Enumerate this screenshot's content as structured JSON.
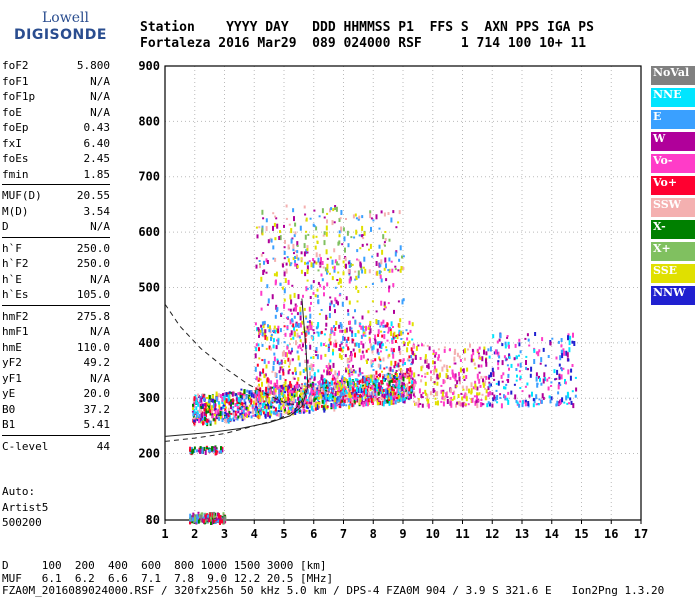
{
  "logo": {
    "line1": "Lowell",
    "line2": "DIGISONDE"
  },
  "header": {
    "labels_line": "Station    YYYY DAY   DDD HHMMSS P1  FFS S  AXN PPS IGA PS",
    "values_line": "Fortaleza 2016 Mar29  089 024000 RSF     1 714 100 10+ 11"
  },
  "params": [
    {
      "name": "foF2",
      "value": "5.800"
    },
    {
      "name": "foF1",
      "value": "N/A"
    },
    {
      "name": "foF1p",
      "value": "N/A"
    },
    {
      "name": "foE",
      "value": "N/A"
    },
    {
      "name": "foEp",
      "value": "0.43"
    },
    {
      "name": "fxI",
      "value": "6.40"
    },
    {
      "name": "foEs",
      "value": "2.45"
    },
    {
      "name": "fmin",
      "value": "1.85"
    },
    {
      "name": "MUF(D)",
      "value": "20.55"
    },
    {
      "name": "M(D)",
      "value": "3.54"
    },
    {
      "name": "D",
      "value": "N/A"
    },
    {
      "name": "h`F",
      "value": "250.0"
    },
    {
      "name": "h`F2",
      "value": "250.0"
    },
    {
      "name": "h`E",
      "value": "N/A"
    },
    {
      "name": "h`Es",
      "value": "105.0"
    },
    {
      "name": "hmF2",
      "value": "275.8"
    },
    {
      "name": "hmF1",
      "value": "N/A"
    },
    {
      "name": "hmE",
      "value": "110.0"
    },
    {
      "name": "yF2",
      "value": "49.2"
    },
    {
      "name": "yF1",
      "value": "N/A"
    },
    {
      "name": "yE",
      "value": "20.0"
    },
    {
      "name": "B0",
      "value": "37.2"
    },
    {
      "name": "B1",
      "value": "5.41"
    },
    {
      "name": "C-level",
      "value": "44"
    }
  ],
  "auto": {
    "line1": "Auto:",
    "line2": "Artist5",
    "line3": "500200"
  },
  "legend": [
    {
      "label": "NoVal",
      "color": "#808080"
    },
    {
      "label": "NNE",
      "color": "#00e5ff"
    },
    {
      "label": "E",
      "color": "#3aa0ff"
    },
    {
      "label": "W",
      "color": "#b0009a"
    },
    {
      "label": "Vo-",
      "color": "#ff3cc8"
    },
    {
      "label": "Vo+",
      "color": "#ff0030"
    },
    {
      "label": "SSW",
      "color": "#f4b0b0"
    },
    {
      "label": "X-",
      "color": "#008000"
    },
    {
      "label": "X+",
      "color": "#80c060"
    },
    {
      "label": "SSE",
      "color": "#e0e000"
    },
    {
      "label": "NNW",
      "color": "#2020d0"
    }
  ],
  "chart_data": {
    "type": "scatter",
    "xlim": [
      1,
      17
    ],
    "ylim": [
      80,
      900
    ],
    "xticks": [
      "1",
      "2",
      "3",
      "4",
      "5",
      "6",
      "7",
      "8",
      "9",
      "10",
      "11",
      "12",
      "13",
      "14",
      "15",
      "16",
      "17"
    ],
    "yticks": [
      "80",
      "200",
      "300",
      "400",
      "500",
      "600",
      "700",
      "800",
      "900"
    ],
    "grid": true,
    "legend_position": "right",
    "clusters": [
      {
        "name": "Es",
        "freq": [
          1.8,
          3.0
        ],
        "height": [
          80,
          95
        ],
        "density": 180,
        "colors": [
          "#3aa0ff",
          "#b0009a",
          "#ff0030",
          "#008000",
          "#80c060",
          "#808080"
        ]
      },
      {
        "name": "Es2",
        "freq": [
          1.8,
          2.9
        ],
        "height": [
          205,
          215
        ],
        "density": 60,
        "colors": [
          "#3aa0ff",
          "#b0009a",
          "#008000",
          "#ff0030"
        ]
      },
      {
        "name": "F-trace",
        "freq": [
          1.9,
          9.3
        ],
        "height": [
          255,
          330
        ],
        "density": 1400,
        "colors": [
          "#ff0030",
          "#e0e000",
          "#3aa0ff",
          "#b0009a",
          "#ff3cc8",
          "#00e5ff",
          "#f4b0b0",
          "#008000",
          "#2020d0"
        ]
      },
      {
        "name": "F-spread",
        "freq": [
          4.0,
          9.3
        ],
        "height": [
          300,
          440
        ],
        "density": 700,
        "colors": [
          "#3aa0ff",
          "#b0009a",
          "#ff0030",
          "#ff3cc8",
          "#00e5ff",
          "#f4b0b0",
          "#e0e000"
        ]
      },
      {
        "name": "F-high",
        "freq": [
          4.2,
          9.0
        ],
        "height": [
          420,
          560
        ],
        "density": 260,
        "colors": [
          "#b0009a",
          "#ff3cc8",
          "#e0e000",
          "#3aa0ff"
        ]
      },
      {
        "name": "multi-hop",
        "freq": [
          4.0,
          9.0
        ],
        "height": [
          530,
          650
        ],
        "density": 240,
        "colors": [
          "#e0e000",
          "#f4b0b0",
          "#3aa0ff",
          "#b0009a",
          "#80c060"
        ]
      },
      {
        "name": "tail",
        "freq": [
          9.3,
          11.8
        ],
        "height": [
          290,
          400
        ],
        "density": 260,
        "colors": [
          "#f4b0b0",
          "#e0e000",
          "#b0009a",
          "#ff3cc8"
        ]
      },
      {
        "name": "far",
        "freq": [
          11.8,
          14.8
        ],
        "height": [
          290,
          420
        ],
        "density": 240,
        "colors": [
          "#2020d0",
          "#b0009a",
          "#00e5ff",
          "#3aa0ff",
          "#ff3cc8"
        ]
      }
    ],
    "curves": [
      {
        "name": "profile-solid",
        "style": "solid",
        "points": [
          [
            1.0,
            231
          ],
          [
            2.5,
            238
          ],
          [
            3.5,
            245
          ],
          [
            4.5,
            256
          ],
          [
            5.2,
            268
          ],
          [
            5.6,
            285
          ],
          [
            5.8,
            320
          ],
          [
            5.75,
            380
          ],
          [
            5.6,
            480
          ]
        ]
      },
      {
        "name": "profile-dashed-lower",
        "style": "dashed",
        "points": [
          [
            1.0,
            222
          ],
          [
            2.0,
            228
          ],
          [
            3.0,
            236
          ],
          [
            4.0,
            250
          ],
          [
            4.8,
            262
          ],
          [
            5.3,
            275
          ],
          [
            5.6,
            295
          ],
          [
            5.75,
            320
          ]
        ]
      },
      {
        "name": "profile-dashed-upper",
        "style": "dashed",
        "points": [
          [
            1.0,
            470
          ],
          [
            1.5,
            430
          ],
          [
            2.2,
            390
          ],
          [
            3.0,
            355
          ],
          [
            3.8,
            325
          ],
          [
            4.5,
            305
          ],
          [
            5.1,
            290
          ],
          [
            5.5,
            288
          ]
        ]
      }
    ]
  },
  "footer": {
    "d_line": "D     100  200  400  600  800 1000 1500 3000 [km]",
    "muf_line": "MUF   6.1  6.2  6.6  7.1  7.8  9.0 12.2 20.5 [MHz]",
    "file_line": "FZA0M_2016089024000.RSF / 320fx256h 50 kHz 5.0 km / DPS-4 FZA0M 904 / 3.9 S 321.6 E   Ion2Png 1.3.20"
  }
}
